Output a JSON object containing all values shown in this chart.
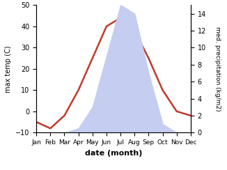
{
  "months": [
    "Jan",
    "Feb",
    "Mar",
    "Apr",
    "May",
    "Jun",
    "Jul",
    "Aug",
    "Sep",
    "Oct",
    "Nov",
    "Dec"
  ],
  "temp": [
    -5,
    -8,
    -2,
    10,
    25,
    40,
    44,
    38,
    25,
    10,
    0,
    -2
  ],
  "precip": [
    0,
    0,
    0,
    0.5,
    3,
    9,
    15,
    14,
    7,
    1,
    0,
    0
  ],
  "temp_color": "#c0392b",
  "precip_fill_color": "#c5cef0",
  "temp_ylim": [
    -10,
    50
  ],
  "precip_ylim": [
    0,
    15
  ],
  "xlabel": "date (month)",
  "ylabel_left": "max temp (C)",
  "ylabel_right": "med. precipitation (kg/m2)",
  "background_color": "#ffffff"
}
